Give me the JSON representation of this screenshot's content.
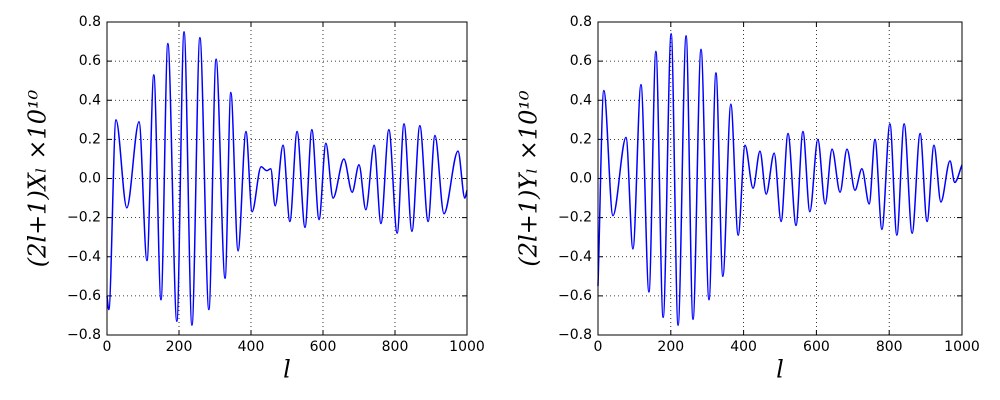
{
  "chart_data": [
    {
      "type": "line",
      "ylabel": "(2l+1)Xₗ ×10¹⁰",
      "xlabel": "l",
      "x": [
        0,
        5,
        25,
        55,
        89,
        111,
        130,
        150,
        169,
        194,
        214,
        236,
        258,
        283,
        303,
        328,
        344,
        364,
        386,
        403,
        428,
        444,
        455,
        467,
        489,
        508,
        528,
        550,
        569,
        589,
        608,
        628,
        658,
        681,
        700,
        719,
        742,
        761,
        783,
        806,
        825,
        847,
        869,
        892,
        911,
        936,
        975,
        994,
        1000
      ],
      "series": [
        {
          "color": "#0000ff",
          "values": [
            -0.6,
            -0.67,
            0.3,
            -0.15,
            0.29,
            -0.42,
            0.53,
            -0.62,
            0.69,
            -0.73,
            0.75,
            -0.75,
            0.72,
            -0.67,
            0.61,
            -0.51,
            0.44,
            -0.37,
            0.24,
            -0.17,
            0.06,
            0.04,
            0.05,
            -0.14,
            0.17,
            -0.22,
            0.24,
            -0.25,
            0.25,
            -0.21,
            0.18,
            -0.1,
            0.1,
            -0.07,
            0.07,
            -0.16,
            0.17,
            -0.23,
            0.25,
            -0.28,
            0.28,
            -0.27,
            0.27,
            -0.22,
            0.22,
            -0.18,
            0.14,
            -0.1,
            -0.06
          ]
        }
      ],
      "xlim": [
        0,
        1000
      ],
      "ylim": [
        -0.8,
        0.8
      ],
      "xticks": [
        0,
        200,
        400,
        600,
        800,
        1000
      ],
      "yticks": [
        {
          "value": -0.8,
          "label": "−0.8"
        },
        {
          "value": -0.6,
          "label": "−0.6"
        },
        {
          "value": -0.4,
          "label": "−0.4"
        },
        {
          "value": -0.2,
          "label": "−0.2"
        },
        {
          "value": 0,
          "label": "0.0"
        },
        0.2,
        0.4,
        0.6,
        0.8
      ],
      "grid": true
    },
    {
      "type": "line",
      "ylabel": "(2l+1)Yₗ ×10¹⁰",
      "xlabel": "l",
      "x": [
        0,
        16,
        41,
        77,
        96,
        118,
        140,
        159,
        179,
        201,
        220,
        242,
        261,
        283,
        305,
        324,
        343,
        365,
        385,
        404,
        426,
        445,
        462,
        484,
        503,
        522,
        544,
        563,
        582,
        604,
        624,
        643,
        665,
        684,
        706,
        725,
        745,
        761,
        780,
        802,
        821,
        841,
        863,
        885,
        904,
        923,
        942,
        967,
        980,
        1000
      ],
      "series": [
        {
          "color": "#0000ff",
          "values": [
            -0.55,
            0.45,
            -0.19,
            0.21,
            -0.36,
            0.48,
            -0.58,
            0.65,
            -0.71,
            0.74,
            -0.75,
            0.73,
            -0.72,
            0.66,
            -0.62,
            0.54,
            -0.5,
            0.38,
            -0.29,
            0.17,
            -0.05,
            0.14,
            -0.08,
            0.13,
            -0.22,
            0.23,
            -0.24,
            0.24,
            -0.17,
            0.2,
            -0.13,
            0.15,
            -0.07,
            0.15,
            -0.06,
            0.05,
            -0.13,
            0.2,
            -0.26,
            0.28,
            -0.29,
            0.28,
            -0.28,
            0.23,
            -0.22,
            0.17,
            -0.12,
            0.09,
            -0.02,
            0.07
          ]
        }
      ],
      "xlim": [
        0,
        1000
      ],
      "ylim": [
        -0.8,
        0.8
      ],
      "xticks": [
        0,
        200,
        400,
        600,
        800,
        1000
      ],
      "yticks": [
        {
          "value": -0.8,
          "label": "−0.8"
        },
        {
          "value": -0.6,
          "label": "−0.6"
        },
        {
          "value": -0.4,
          "label": "−0.4"
        },
        {
          "value": -0.2,
          "label": "−0.2"
        },
        {
          "value": 0,
          "label": "0.0"
        },
        0.2,
        0.4,
        0.6,
        0.8
      ],
      "grid": true
    }
  ]
}
